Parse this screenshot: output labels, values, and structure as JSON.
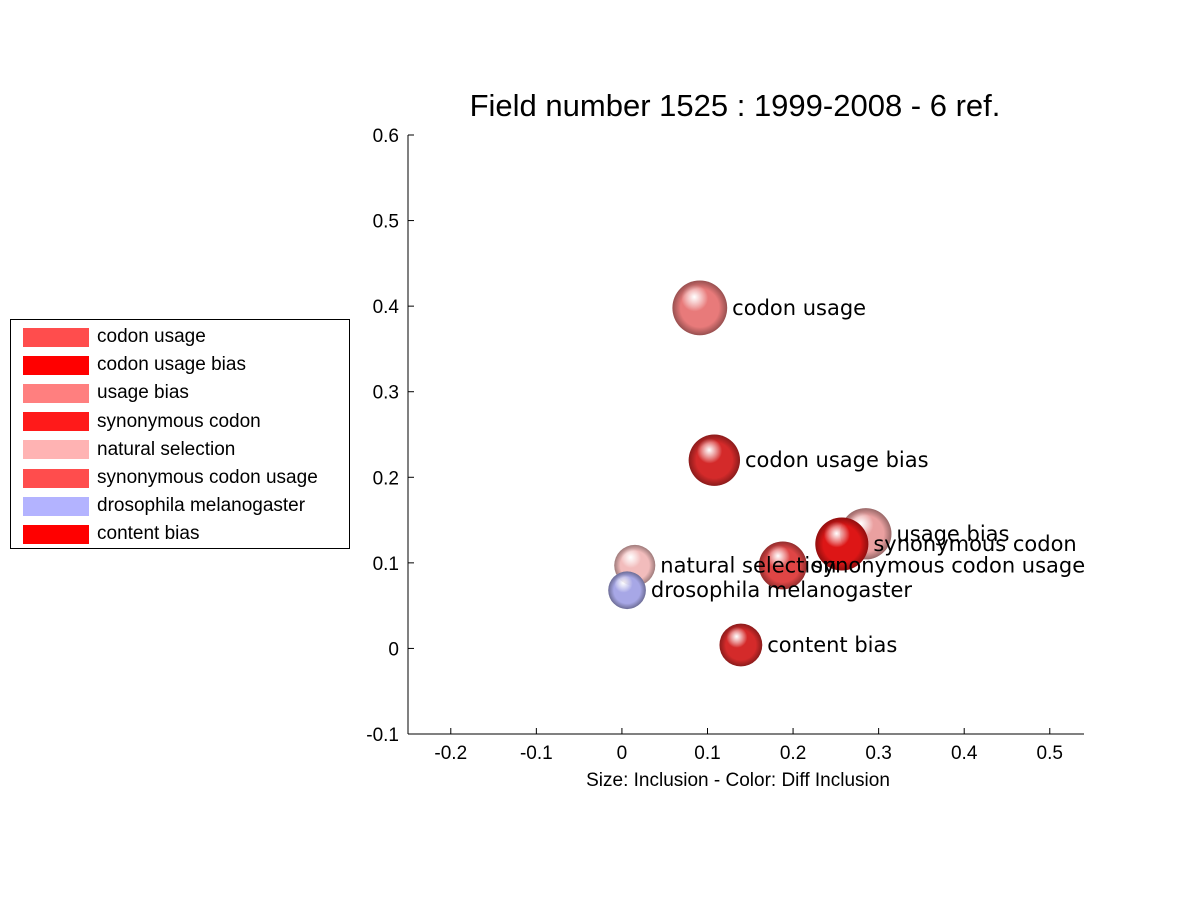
{
  "chart_data": {
    "type": "scatter",
    "title": "Field number 1525 : 1999-2008  - 6 ref.",
    "xlabel": "Size: Inclusion - Color: Diff Inclusion",
    "ylabel": "",
    "xlim": [
      -0.25,
      0.54
    ],
    "ylim": [
      -0.1,
      0.6
    ],
    "x_ticks": [
      -0.2,
      -0.1,
      0,
      0.1,
      0.2,
      0.3,
      0.4,
      0.5
    ],
    "x_tick_labels": [
      "-0.2",
      "-0.1",
      "0",
      "0.1",
      "0.2",
      "0.3",
      "0.4",
      "0.5"
    ],
    "y_ticks": [
      -0.1,
      0,
      0.1,
      0.2,
      0.3,
      0.4,
      0.5,
      0.6
    ],
    "y_tick_labels": [
      "-0.1",
      "0",
      "0.1",
      "0.2",
      "0.3",
      "0.4",
      "0.5",
      "0.6"
    ],
    "grid": false,
    "legend_position": "left",
    "points": [
      {
        "label": "codon usage",
        "x": 0.091,
        "y": 0.398,
        "size": 0.032,
        "color": "#ff4d4d",
        "sphere": "#e87a7a"
      },
      {
        "label": "codon usage bias",
        "x": 0.108,
        "y": 0.22,
        "size": 0.03,
        "color": "#ff0000",
        "sphere": "#d42a2a"
      },
      {
        "label": "usage bias",
        "x": 0.285,
        "y": 0.134,
        "size": 0.03,
        "color": "#ff7f7f",
        "sphere": "#eaa0a0"
      },
      {
        "label": "synonymous codon",
        "x": 0.257,
        "y": 0.122,
        "size": 0.031,
        "color": "#ff1a1a",
        "sphere": "#dd1616"
      },
      {
        "label": "natural selection",
        "x": 0.015,
        "y": 0.097,
        "size": 0.024,
        "color": "#ffb3b3",
        "sphere": "#f2bcbc"
      },
      {
        "label": "synonymous codon usage",
        "x": 0.188,
        "y": 0.097,
        "size": 0.028,
        "color": "#ff4d4d",
        "sphere": "#df4545"
      },
      {
        "label": "drosophila melanogaster",
        "x": 0.006,
        "y": 0.068,
        "size": 0.022,
        "color": "#b3b3ff",
        "sphere": "#a7a7e6"
      },
      {
        "label": "content bias",
        "x": 0.139,
        "y": 0.004,
        "size": 0.025,
        "color": "#ff0000",
        "sphere": "#d42a2a"
      }
    ]
  },
  "legend": {
    "items": [
      {
        "label": "codon usage",
        "color": "#ff4d4d"
      },
      {
        "label": "codon usage bias",
        "color": "#ff0000"
      },
      {
        "label": "usage bias",
        "color": "#ff7f7f"
      },
      {
        "label": "synonymous codon",
        "color": "#ff1a1a"
      },
      {
        "label": "natural selection",
        "color": "#ffb3b3"
      },
      {
        "label": "synonymous codon usage",
        "color": "#ff4d4d"
      },
      {
        "label": "drosophila melanogaster",
        "color": "#b3b3ff"
      },
      {
        "label": "content bias",
        "color": "#ff0000"
      }
    ]
  }
}
